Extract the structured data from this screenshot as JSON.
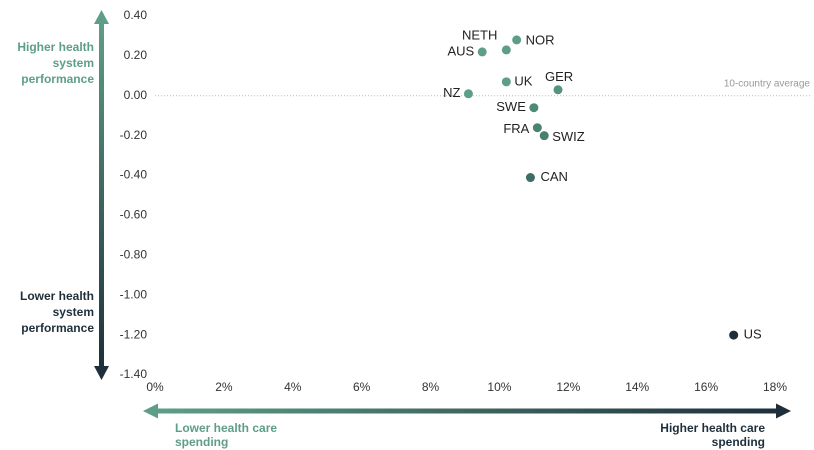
{
  "chart_data": {
    "type": "scatter",
    "y_axis_top_label": "Higher health system performance",
    "y_axis_bottom_label": "Lower health system performance",
    "x_axis_left_label": "Lower health care spending",
    "x_axis_right_label": "Higher health care spending",
    "annotation": "10-country average",
    "labels": [
      "NETH",
      "NOR",
      "AUS",
      "UK",
      "GER",
      "NZ",
      "SWE",
      "FRA",
      "SWIZ",
      "CAN",
      "US"
    ],
    "x": [
      10.2,
      10.5,
      9.5,
      10.2,
      11.7,
      9.1,
      11.0,
      11.1,
      11.3,
      10.9,
      16.8
    ],
    "y": [
      0.23,
      0.28,
      0.22,
      0.07,
      0.03,
      0.01,
      -0.06,
      -0.16,
      -0.2,
      -0.41,
      -1.2
    ],
    "colors": [
      "#5e9e87",
      "#5e9e87",
      "#5e9e87",
      "#5e9e87",
      "#549380",
      "#5e9e87",
      "#4f8a79",
      "#4a8373",
      "#47806f",
      "#3c6e63",
      "#1e2f3b"
    ],
    "xlim": [
      0,
      18
    ],
    "xticks": [
      {
        "value": 0,
        "label": "0%"
      },
      {
        "value": 2,
        "label": "2%"
      },
      {
        "value": 4,
        "label": "4%"
      },
      {
        "value": 6,
        "label": "6%"
      },
      {
        "value": 8,
        "label": "8%"
      },
      {
        "value": 10,
        "label": "10%"
      },
      {
        "value": 12,
        "label": "12%"
      },
      {
        "value": 14,
        "label": "14%"
      },
      {
        "value": 16,
        "label": "16%"
      },
      {
        "value": 18,
        "label": "18%"
      }
    ],
    "ylim": [
      -1.4,
      0.4
    ],
    "yticks": [
      {
        "value": 0.4,
        "label": "0.40"
      },
      {
        "value": 0.2,
        "label": "0.20"
      },
      {
        "value": 0,
        "label": "0.00"
      },
      {
        "value": -0.2,
        "label": "-0.20"
      },
      {
        "value": -0.4,
        "label": "-0.40"
      },
      {
        "value": -0.6,
        "label": "-0.60"
      },
      {
        "value": -0.8,
        "label": "-0.80"
      },
      {
        "value": -1.0,
        "label": "-1.00"
      },
      {
        "value": -1.2,
        "label": "-1.20"
      },
      {
        "value": -1.4,
        "label": "-1.40"
      }
    ],
    "reference_y": 0
  }
}
